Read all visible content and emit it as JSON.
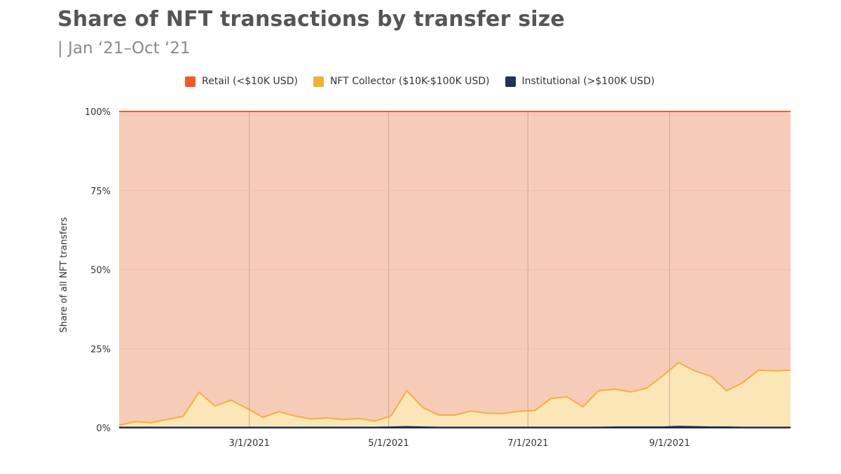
{
  "title": "Share of NFT transactions by transfer size",
  "subtitle": "| Jan ‘21–Oct ‘21",
  "chart_data": {
    "type": "area",
    "stacked": true,
    "percent_stacked": true,
    "ylabel": "Share of all NFT transfers",
    "xlabel": "",
    "x_ticks": [
      "3/1/2021",
      "5/1/2021",
      "7/1/2021",
      "9/1/2021"
    ],
    "y_ticks": [
      "0%",
      "25%",
      "50%",
      "75%",
      "100%"
    ],
    "ylim": [
      0,
      100
    ],
    "xlim": [
      "2021-01-03",
      "2021-10-24"
    ],
    "legend_position": "top",
    "x": [
      "2021-01-03",
      "2021-01-10",
      "2021-01-17",
      "2021-01-24",
      "2021-01-31",
      "2021-02-07",
      "2021-02-14",
      "2021-02-21",
      "2021-02-28",
      "2021-03-07",
      "2021-03-14",
      "2021-03-21",
      "2021-03-28",
      "2021-04-04",
      "2021-04-11",
      "2021-04-18",
      "2021-04-25",
      "2021-05-02",
      "2021-05-09",
      "2021-05-16",
      "2021-05-23",
      "2021-05-30",
      "2021-06-06",
      "2021-06-13",
      "2021-06-20",
      "2021-06-27",
      "2021-07-04",
      "2021-07-11",
      "2021-07-18",
      "2021-07-25",
      "2021-08-01",
      "2021-08-08",
      "2021-08-15",
      "2021-08-22",
      "2021-08-29",
      "2021-09-05",
      "2021-09-12",
      "2021-09-19",
      "2021-09-26",
      "2021-10-03",
      "2021-10-10",
      "2021-10-17",
      "2021-10-24"
    ],
    "series": [
      {
        "name": "Institutional (>$100K USD)",
        "color": "#23305e",
        "values": [
          0.1,
          0.1,
          0.1,
          0.1,
          0.1,
          0.1,
          0.1,
          0.1,
          0.1,
          0.1,
          0.1,
          0.1,
          0.1,
          0.1,
          0.1,
          0.1,
          0.1,
          0.2,
          0.3,
          0.2,
          0.1,
          0.1,
          0.1,
          0.1,
          0.1,
          0.1,
          0.1,
          0.1,
          0.1,
          0.1,
          0.1,
          0.2,
          0.2,
          0.2,
          0.2,
          0.4,
          0.3,
          0.2,
          0.2,
          0.1,
          0.1,
          0.1,
          0.1
        ]
      },
      {
        "name": "NFT Collector ($10K-$100K USD)",
        "color": "#f4ae3d",
        "values": [
          0.7,
          1.8,
          1.5,
          2.5,
          3.5,
          11.1,
          6.8,
          8.6,
          6.0,
          3.2,
          5.0,
          3.6,
          2.7,
          3.0,
          2.5,
          2.8,
          2.0,
          3.5,
          11.4,
          6.2,
          3.9,
          3.9,
          5.2,
          4.5,
          4.4,
          5.1,
          5.3,
          9.1,
          9.7,
          6.5,
          11.6,
          12.0,
          11.1,
          12.3,
          16.2,
          20.2,
          17.7,
          16.1,
          11.5,
          14.1,
          18.1,
          17.9,
          18.1
        ]
      },
      {
        "name": "Retail (<$10K USD)",
        "color": "#f15a29",
        "values": [
          99.2,
          98.1,
          98.4,
          97.4,
          96.4,
          88.8,
          93.1,
          91.3,
          93.9,
          96.7,
          94.9,
          96.3,
          97.2,
          96.9,
          97.4,
          97.1,
          97.9,
          96.3,
          88.3,
          93.6,
          96.0,
          96.0,
          94.7,
          95.4,
          95.5,
          94.8,
          94.6,
          90.8,
          90.2,
          93.4,
          88.3,
          87.8,
          88.7,
          87.5,
          83.6,
          79.4,
          82.0,
          83.7,
          88.3,
          85.8,
          81.8,
          82.0,
          81.8
        ]
      }
    ]
  },
  "legend": {
    "retail": {
      "label": "Retail (<$10K USD)",
      "color": "#f15a29"
    },
    "collector": {
      "label": "NFT Collector ($10K-$100K USD)",
      "color": "#f4ae3d"
    },
    "institutional": {
      "label": "Institutional (>$100K USD)",
      "color": "#23305e"
    }
  },
  "fills": {
    "retail": "#f6ccb8",
    "collector": "#fae6b7",
    "institutional": "#23305e"
  }
}
